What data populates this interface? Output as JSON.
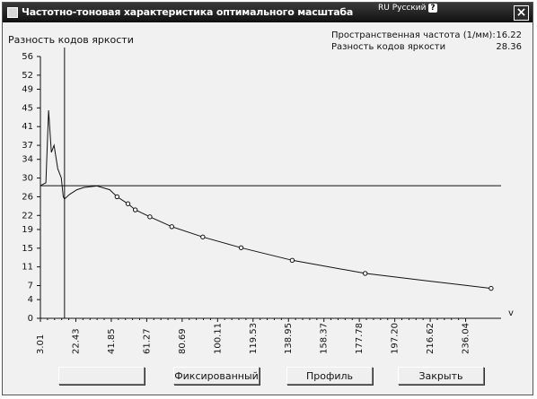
{
  "window": {
    "title": "Частотно-тоновая характеристика оптимального масштаба",
    "language": "RU Русский",
    "help_icon": "question-icon",
    "close_icon": "close-icon"
  },
  "info": {
    "spatial_freq_label": "Пространственная частота (1/мм):",
    "spatial_freq_value": "16.22",
    "brightness_diff_label": "Разность кодов яркости",
    "brightness_diff_value": "28.36"
  },
  "buttons": {
    "first_label": "",
    "fixed_label": "Фиксированный",
    "profile_label": "Профиль",
    "close_label": "Закрыть"
  },
  "chart_data": {
    "type": "line",
    "title": "",
    "ylabel": "Разность кодов яркости",
    "xlabel": "v",
    "xlim": [
      3.01,
      255.46
    ],
    "ylim": [
      0,
      56
    ],
    "x_ticks": [
      "3.01",
      "22.43",
      "41.85",
      "61.27",
      "80.69",
      "100.11",
      "119.53",
      "138.95",
      "158.37",
      "177.78",
      "197.20",
      "216.62",
      "236.04"
    ],
    "y_ticks": [
      "0",
      "4",
      "7",
      "11",
      "15",
      "19",
      "22",
      "26",
      "30",
      "34",
      "37",
      "41",
      "45",
      "49",
      "52",
      "56"
    ],
    "reference_line": {
      "y": 28.36
    },
    "vertical_marker": {
      "x": 16.22
    },
    "series": [
      {
        "values": [
          [
            3.01,
            28.36
          ],
          [
            6.0,
            29.0
          ],
          [
            7.5,
            44.5
          ],
          [
            9.0,
            35.5
          ],
          [
            10.5,
            37.0
          ],
          [
            12.5,
            32.0
          ],
          [
            14.5,
            30.0
          ],
          [
            15.5,
            26.0
          ],
          [
            16.22,
            25.5
          ],
          [
            19.0,
            26.5
          ],
          [
            23.0,
            27.5
          ],
          [
            27.0,
            28.0
          ],
          [
            34.0,
            28.3
          ],
          [
            41.0,
            27.5
          ],
          [
            45.0,
            26.0
          ],
          [
            51.0,
            24.5
          ],
          [
            55.0,
            23.2
          ],
          [
            63.0,
            21.7
          ],
          [
            75.0,
            19.6
          ],
          [
            92.0,
            17.4
          ],
          [
            113.0,
            15.1
          ],
          [
            141.0,
            12.4
          ],
          [
            181.0,
            9.6
          ],
          [
            215.0,
            8.0
          ],
          [
            250.0,
            6.4
          ]
        ],
        "markers": [
          [
            45.0,
            26.0
          ],
          [
            51.0,
            24.5
          ],
          [
            55.0,
            23.2
          ],
          [
            63.0,
            21.7
          ],
          [
            75.0,
            19.6
          ],
          [
            92.0,
            17.4
          ],
          [
            113.0,
            15.1
          ],
          [
            141.0,
            12.4
          ],
          [
            181.0,
            9.6
          ],
          [
            250.0,
            6.4
          ]
        ]
      }
    ]
  }
}
